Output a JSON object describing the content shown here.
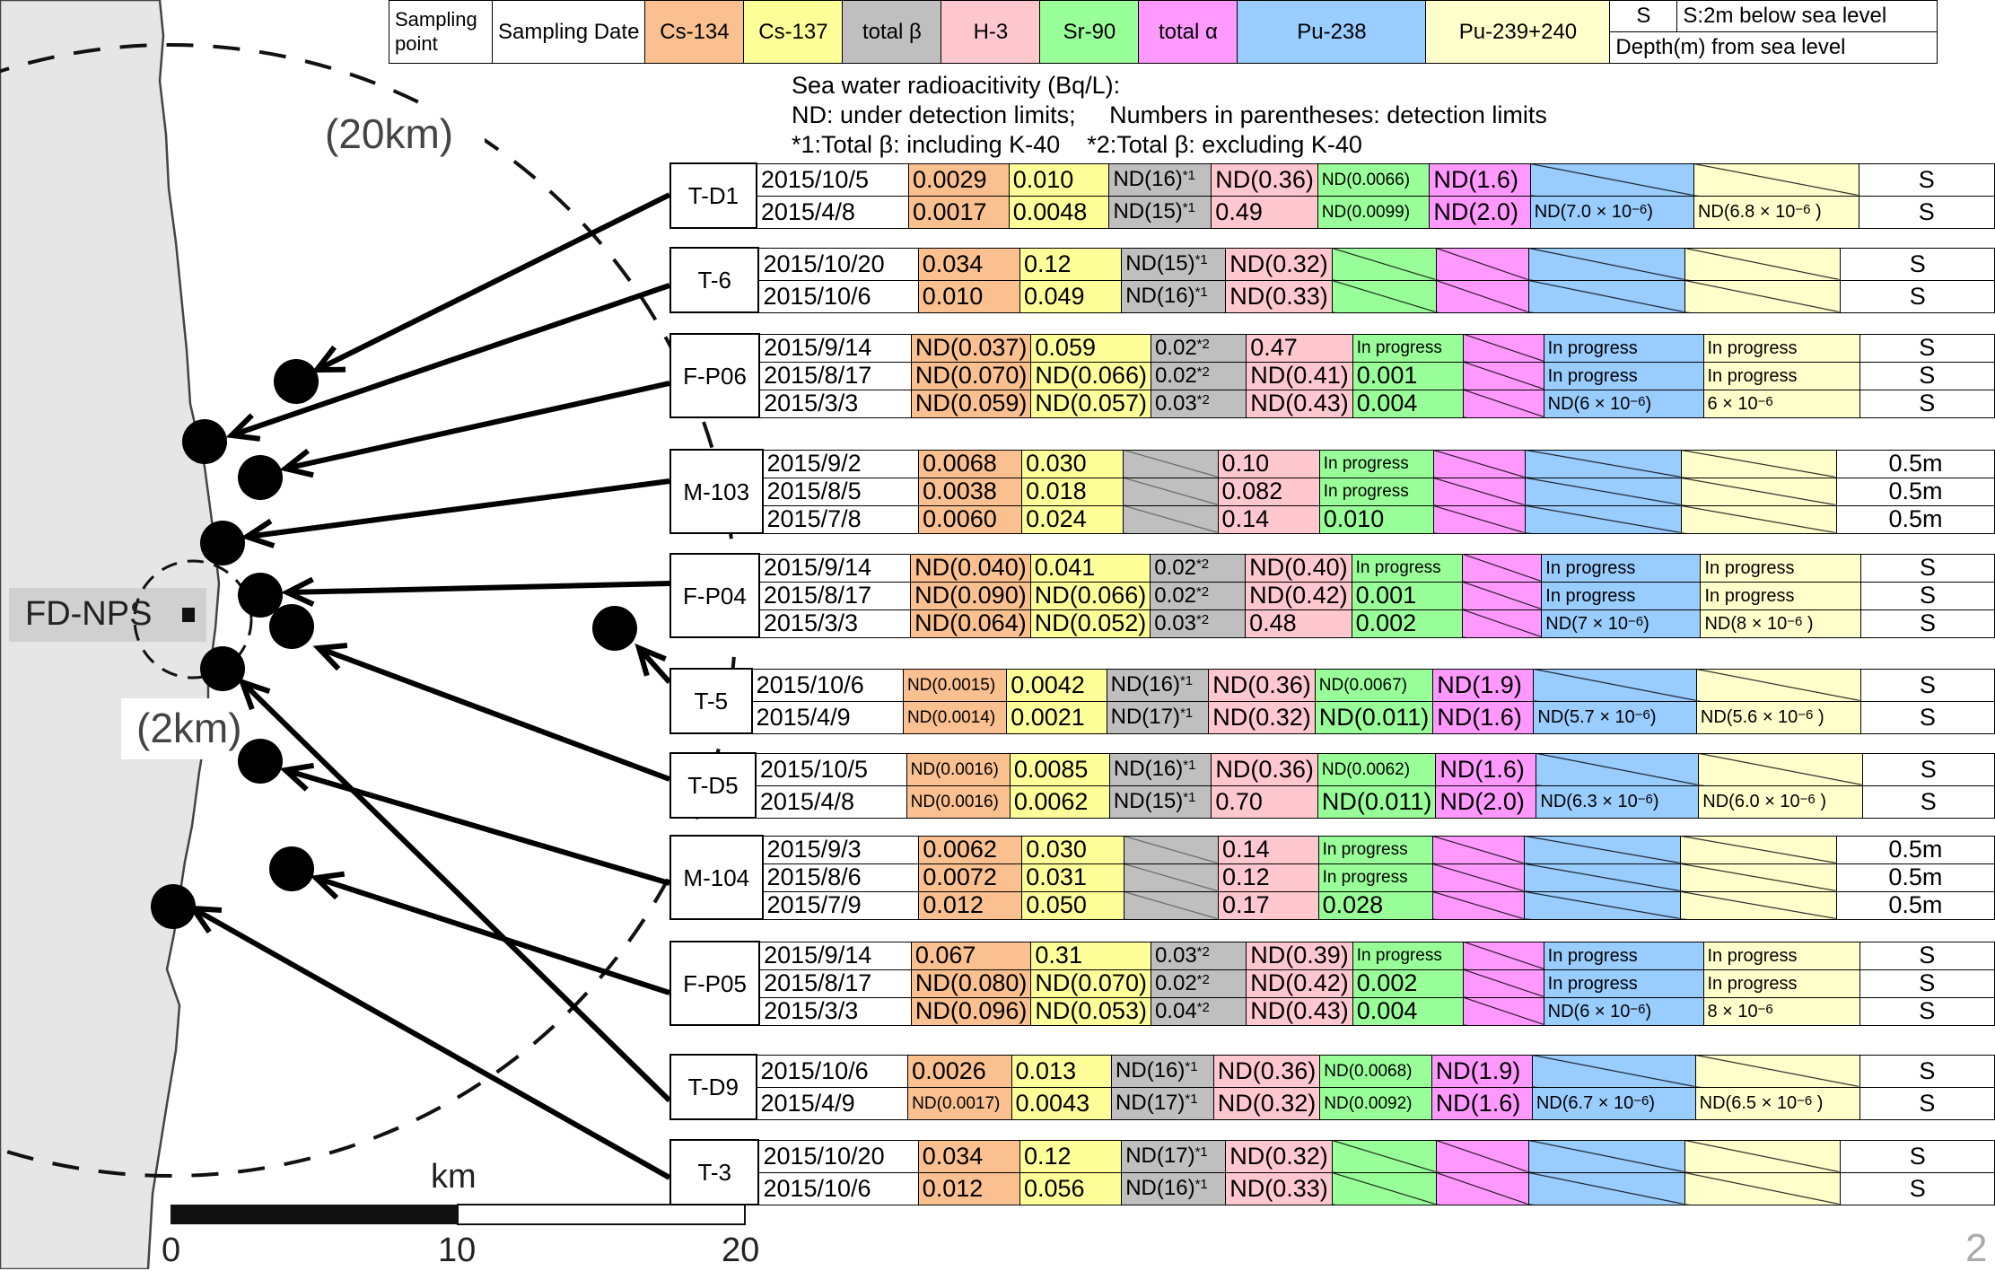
{
  "header": {
    "sampling_point": "Sampling point",
    "sampling_date": "Sampling Date",
    "cs134": "Cs-134",
    "cs137": "Cs-137",
    "total_beta": "total β",
    "h3": "H-3",
    "sr90": "Sr-90",
    "total_alpha": "total α",
    "pu238": "Pu-238",
    "pu239": "Pu-239+240",
    "s_code": "S",
    "s_desc": "S:2m below sea level",
    "depth": "Depth(m) from sea level"
  },
  "notes": {
    "line1": "Sea water radioacitivity (Bq/L):",
    "line2": "ND: under detection limits;     Numbers in parentheses: detection limits",
    "line3": "*1:Total β: including K-40    *2:Total β: excluding K-40"
  },
  "map": {
    "label_20km": "(20km)",
    "label_2km": "(2km)",
    "plant_label": "FD-NPS",
    "scale_unit": "km",
    "scale_0": "0",
    "scale_10": "10",
    "scale_20": "20",
    "page_number": "2"
  },
  "colors": {
    "cs134": "#fac090",
    "cs137": "#ffff99",
    "total_beta": "#bfbfbf",
    "h3": "#ffc7ce",
    "sr90": "#99ff99",
    "total_alpha": "#ff99ff",
    "pu238": "#99ccff",
    "pu239": "#ffffcc",
    "land": "#e6e6e6"
  },
  "groups": [
    {
      "point": "T-D1",
      "rows": [
        {
          "date": "2015/10/5",
          "cs134": "0.0029",
          "cs137": "0.010",
          "beta": "ND(16)",
          "beta_note": "*1",
          "h3": "ND(0.36)",
          "sr90": "ND(0.0066)",
          "alpha": "ND(1.6)",
          "pu238": "",
          "pu239": "",
          "depth": "S"
        },
        {
          "date": "2015/4/8",
          "cs134": "0.0017",
          "cs137": "0.0048",
          "beta": "ND(15)",
          "beta_note": "*1",
          "h3": "0.49",
          "sr90": "ND(0.0099)",
          "alpha": "ND(2.0)",
          "pu238": "ND(7.0 × 10",
          "pu238_exp": "−6",
          "pu238_end": ")",
          "pu239": "ND(6.8 × 10",
          "pu239_exp": "−6",
          "pu239_end": " )",
          "depth": "S"
        }
      ]
    },
    {
      "point": "T-6",
      "rows": [
        {
          "date": "2015/10/20",
          "cs134": "0.034",
          "cs137": "0.12",
          "beta": "ND(15)",
          "beta_note": "*1",
          "h3": "ND(0.32)",
          "sr90": "",
          "alpha": "",
          "pu238": "",
          "pu239": "",
          "depth": "S"
        },
        {
          "date": "2015/10/6",
          "cs134": "0.010",
          "cs137": "0.049",
          "beta": "ND(16)",
          "beta_note": "*1",
          "h3": "ND(0.33)",
          "sr90": "",
          "alpha": "",
          "pu238": "",
          "pu239": "",
          "depth": "S"
        }
      ]
    },
    {
      "point": "F-P06",
      "rows": [
        {
          "date": "2015/9/14",
          "cs134": "ND(0.037)",
          "cs137": "0.059",
          "beta": "0.02",
          "beta_note": "*2",
          "h3": "0.47",
          "sr90": "In progress",
          "alpha": "",
          "pu238": "In progress",
          "pu239": "In progress",
          "depth": "S"
        },
        {
          "date": "2015/8/17",
          "cs134": "ND(0.070)",
          "cs137": "ND(0.066)",
          "beta": "0.02",
          "beta_note": "*2",
          "h3": "ND(0.41)",
          "sr90": "0.001",
          "alpha": "",
          "pu238": "In progress",
          "pu239": "In progress",
          "depth": "S"
        },
        {
          "date": "2015/3/3",
          "cs134": "ND(0.059)",
          "cs137": "ND(0.057)",
          "beta": "0.03",
          "beta_note": "*2",
          "h3": "ND(0.43)",
          "sr90": "0.004",
          "alpha": "",
          "pu238": "ND(6 × 10",
          "pu238_exp": "−6",
          "pu238_end": ")",
          "pu239": "6 × 10",
          "pu239_exp": "−6",
          "pu239_end": "",
          "depth": "S"
        }
      ]
    },
    {
      "point": "M-103",
      "rows": [
        {
          "date": "2015/9/2",
          "cs134": "0.0068",
          "cs137": "0.030",
          "beta": "",
          "beta_note": "",
          "h3": "0.10",
          "sr90": "In progress",
          "alpha": "",
          "pu238": "",
          "pu239": "",
          "depth": "0.5m"
        },
        {
          "date": "2015/8/5",
          "cs134": "0.0038",
          "cs137": "0.018",
          "beta": "",
          "beta_note": "",
          "h3": "0.082",
          "sr90": "In progress",
          "alpha": "",
          "pu238": "",
          "pu239": "",
          "depth": "0.5m"
        },
        {
          "date": "2015/7/8",
          "cs134": "0.0060",
          "cs137": "0.024",
          "beta": "",
          "beta_note": "",
          "h3": "0.14",
          "sr90": "0.010",
          "alpha": "",
          "pu238": "",
          "pu239": "",
          "depth": "0.5m"
        }
      ]
    },
    {
      "point": "F-P04",
      "rows": [
        {
          "date": "2015/9/14",
          "cs134": "ND(0.040)",
          "cs137": "0.041",
          "beta": "0.02",
          "beta_note": "*2",
          "h3": "ND(0.40)",
          "sr90": "In progress",
          "alpha": "",
          "pu238": "In progress",
          "pu239": "In progress",
          "depth": "S"
        },
        {
          "date": "2015/8/17",
          "cs134": "ND(0.090)",
          "cs137": "ND(0.066)",
          "beta": "0.02",
          "beta_note": "*2",
          "h3": "ND(0.42)",
          "sr90": "0.001",
          "alpha": "",
          "pu238": "In progress",
          "pu239": "In progress",
          "depth": "S"
        },
        {
          "date": "2015/3/3",
          "cs134": "ND(0.064)",
          "cs137": "ND(0.052)",
          "beta": "0.03",
          "beta_note": "*2",
          "h3": "0.48",
          "sr90": "0.002",
          "alpha": "",
          "pu238": "ND(7 × 10",
          "pu238_exp": "−6",
          "pu238_end": ")",
          "pu239": "ND(8 × 10",
          "pu239_exp": "−6",
          "pu239_end": " )",
          "depth": "S"
        }
      ]
    },
    {
      "point": "T-5",
      "rows": [
        {
          "date": "2015/10/6",
          "cs134": "ND(0.0015)",
          "cs137": "0.0042",
          "beta": "ND(16)",
          "beta_note": "*1",
          "h3": "ND(0.36)",
          "sr90": "ND(0.0067)",
          "alpha": "ND(1.9)",
          "pu238": "",
          "pu239": "",
          "depth": "S"
        },
        {
          "date": "2015/4/9",
          "cs134": "ND(0.0014)",
          "cs137": "0.0021",
          "beta": "ND(17)",
          "beta_note": "*1",
          "h3": "ND(0.32)",
          "sr90": "ND(0.011)",
          "alpha": "ND(1.6)",
          "pu238": "ND(5.7 × 10",
          "pu238_exp": "−6",
          "pu238_end": ")",
          "pu239": "ND(5.6 × 10",
          "pu239_exp": "−6",
          "pu239_end": " )",
          "depth": "S"
        }
      ]
    },
    {
      "point": "T-D5",
      "rows": [
        {
          "date": "2015/10/5",
          "cs134": "ND(0.0016)",
          "cs137": "0.0085",
          "beta": "ND(16)",
          "beta_note": "*1",
          "h3": "ND(0.36)",
          "sr90": "ND(0.0062)",
          "alpha": "ND(1.6)",
          "pu238": "",
          "pu239": "",
          "depth": "S"
        },
        {
          "date": "2015/4/8",
          "cs134": "ND(0.0016)",
          "cs137": "0.0062",
          "beta": "ND(15)",
          "beta_note": "*1",
          "h3": "0.70",
          "sr90": "ND(0.011)",
          "alpha": "ND(2.0)",
          "pu238": "ND(6.3 × 10",
          "pu238_exp": "−6",
          "pu238_end": ")",
          "pu239": "ND(6.0 × 10",
          "pu239_exp": "−6",
          "pu239_end": " )",
          "depth": "S"
        }
      ]
    },
    {
      "point": "M-104",
      "rows": [
        {
          "date": "2015/9/3",
          "cs134": "0.0062",
          "cs137": "0.030",
          "beta": "",
          "beta_note": "",
          "h3": "0.14",
          "sr90": "In progress",
          "alpha": "",
          "pu238": "",
          "pu239": "",
          "depth": "0.5m"
        },
        {
          "date": "2015/8/6",
          "cs134": "0.0072",
          "cs137": "0.031",
          "beta": "",
          "beta_note": "",
          "h3": "0.12",
          "sr90": "In progress",
          "alpha": "",
          "pu238": "",
          "pu239": "",
          "depth": "0.5m"
        },
        {
          "date": "2015/7/9",
          "cs134": "0.012",
          "cs137": "0.050",
          "beta": "",
          "beta_note": "",
          "h3": "0.17",
          "sr90": "0.028",
          "alpha": "",
          "pu238": "",
          "pu239": "",
          "depth": "0.5m"
        }
      ]
    },
    {
      "point": "F-P05",
      "rows": [
        {
          "date": "2015/9/14",
          "cs134": "0.067",
          "cs137": "0.31",
          "beta": "0.03",
          "beta_note": "*2",
          "h3": "ND(0.39)",
          "sr90": "In progress",
          "alpha": "",
          "pu238": "In progress",
          "pu239": "In progress",
          "depth": "S"
        },
        {
          "date": "2015/8/17",
          "cs134": "ND(0.080)",
          "cs137": "ND(0.070)",
          "beta": "0.02",
          "beta_note": "*2",
          "h3": "ND(0.42)",
          "sr90": "0.002",
          "alpha": "",
          "pu238": "In progress",
          "pu239": "In progress",
          "depth": "S"
        },
        {
          "date": "2015/3/3",
          "cs134": "ND(0.096)",
          "cs137": "ND(0.053)",
          "beta": "0.04",
          "beta_note": "*2",
          "h3": "ND(0.43)",
          "sr90": "0.004",
          "alpha": "",
          "pu238": "ND(6 × 10",
          "pu238_exp": "−6",
          "pu238_end": ")",
          "pu239": "8 × 10",
          "pu239_exp": "−6",
          "pu239_end": "",
          "depth": "S"
        }
      ]
    },
    {
      "point": "T-D9",
      "rows": [
        {
          "date": "2015/10/6",
          "cs134": "0.0026",
          "cs137": "0.013",
          "beta": "ND(16)",
          "beta_note": "*1",
          "h3": "ND(0.36)",
          "sr90": "ND(0.0068)",
          "alpha": "ND(1.9)",
          "pu238": "",
          "pu239": "",
          "depth": "S"
        },
        {
          "date": "2015/4/9",
          "cs134": "ND(0.0017)",
          "cs137": "0.0043",
          "beta": "ND(17)",
          "beta_note": "*1",
          "h3": "ND(0.32)",
          "sr90": "ND(0.0092)",
          "alpha": "ND(1.6)",
          "pu238": "ND(6.7 × 10",
          "pu238_exp": "−6",
          "pu238_end": ")",
          "pu239": "ND(6.5 × 10",
          "pu239_exp": "−6",
          "pu239_end": " )",
          "depth": "S"
        }
      ]
    },
    {
      "point": "T-3",
      "rows": [
        {
          "date": "2015/10/20",
          "cs134": "0.034",
          "cs137": "0.12",
          "beta": "ND(17)",
          "beta_note": "*1",
          "h3": "ND(0.32)",
          "sr90": "",
          "alpha": "",
          "pu238": "",
          "pu239": "",
          "depth": "S"
        },
        {
          "date": "2015/10/6",
          "cs134": "0.012",
          "cs137": "0.056",
          "beta": "ND(16)",
          "beta_note": "*1",
          "h3": "ND(0.33)",
          "sr90": "",
          "alpha": "",
          "pu238": "",
          "pu239": "",
          "depth": "S"
        }
      ]
    }
  ]
}
